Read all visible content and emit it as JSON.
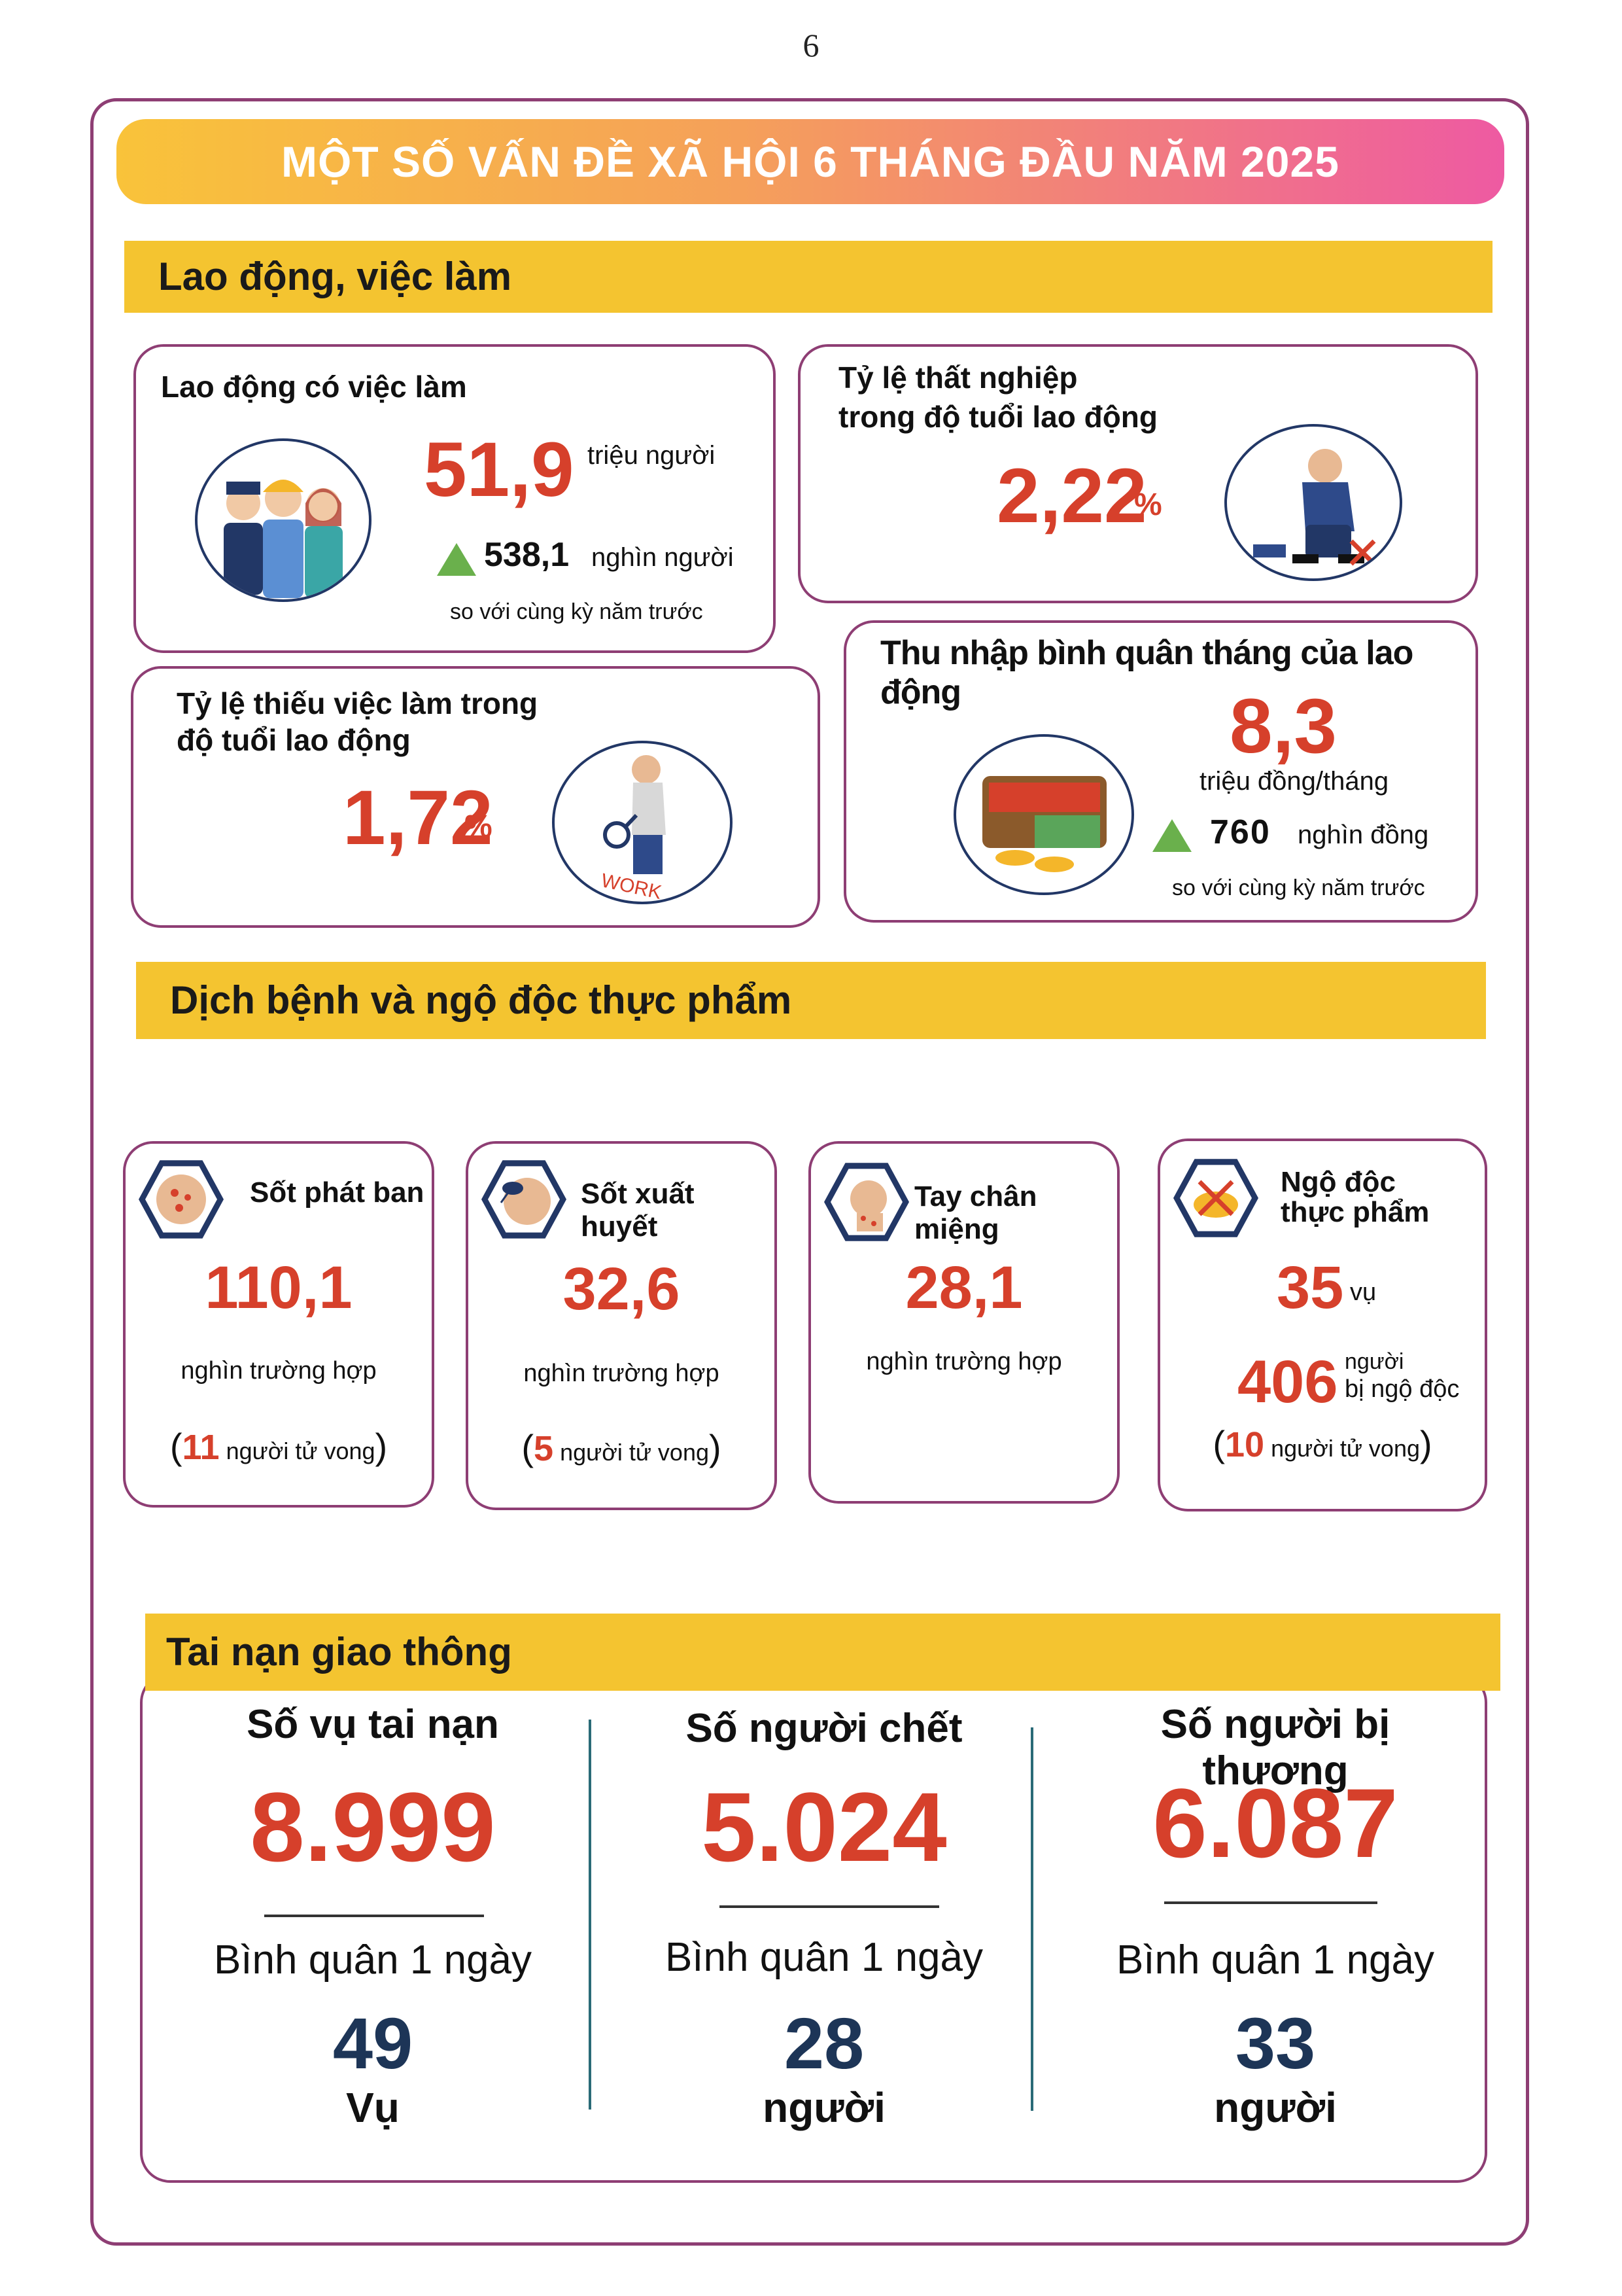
{
  "page_number": "6",
  "title": "MỘT SỐ VẤN ĐỀ XÃ HỘI 6 THÁNG ĐẦU NĂM 2025",
  "colors": {
    "accent_red": "#d6402b",
    "section_yellow": "#f4c430",
    "frame_purple": "#8e3e74",
    "navy": "#1d3557",
    "green_up": "#6ab04c"
  },
  "labor": {
    "heading": "Lao động, việc làm",
    "employed": {
      "label": "Lao động có việc làm",
      "value": "51,9",
      "unit": "triệu người",
      "change": "538,1",
      "change_unit": "nghìn người",
      "compare": "so với cùng kỳ năm trước",
      "icon": "workers-icon"
    },
    "unemployment": {
      "label_line1": "Tỷ lệ thất nghiệp",
      "label_line2": "trong độ tuổi lao động",
      "value": "2,22",
      "unit": "%",
      "icon": "unemployed-person-icon"
    },
    "underemployment": {
      "label_line1": "Tỷ lệ thiếu việc làm trong",
      "label_line2": "độ tuổi lao động",
      "value": "1,72",
      "unit": "%",
      "icon": "job-search-icon"
    },
    "income": {
      "label": "Thu nhập bình quân tháng của lao động",
      "value": "8,3",
      "unit": "triệu đồng/tháng",
      "change": "760",
      "change_unit": "nghìn đồng",
      "compare": "so với cùng kỳ năm trước",
      "icon": "wallet-icon"
    }
  },
  "disease": {
    "heading": "Dịch bệnh và ngộ độc thực phẩm",
    "cards": [
      {
        "label": "Sốt phát ban",
        "value": "110,1",
        "unit": "nghìn trường hợp",
        "deaths": "11",
        "deaths_label": "người tử vong",
        "icon": "rash-icon"
      },
      {
        "label": "Sốt xuất huyết",
        "value": "32,6",
        "unit": "nghìn trường hợp",
        "deaths": "5",
        "deaths_label": "người tử vong",
        "icon": "mosquito-icon"
      },
      {
        "label": "Tay chân miệng",
        "value": "28,1",
        "unit": "nghìn trường hợp",
        "icon": "hand-foot-mouth-icon"
      },
      {
        "label_line1": "Ngộ độc",
        "label_line2": "thực phẩm",
        "value": "35",
        "unit": "vụ",
        "people": "406",
        "people_line1": "người",
        "people_line2": "bị ngộ độc",
        "deaths": "10",
        "deaths_label": "người tử vong",
        "icon": "food-poisoning-icon"
      }
    ]
  },
  "traffic": {
    "heading": "Tai nạn giao thông",
    "columns": [
      {
        "label": "Số vụ tai nạn",
        "value": "8.999",
        "avg_label": "Bình quân 1 ngày",
        "avg_value": "49",
        "avg_unit": "Vụ"
      },
      {
        "label": "Số người chết",
        "value": "5.024",
        "avg_label": "Bình quân 1 ngày",
        "avg_value": "28",
        "avg_unit": "người"
      },
      {
        "label": "Số người bị thương",
        "value": "6.087",
        "avg_label": "Bình quân 1 ngày",
        "avg_value": "33",
        "avg_unit": "người"
      }
    ]
  }
}
